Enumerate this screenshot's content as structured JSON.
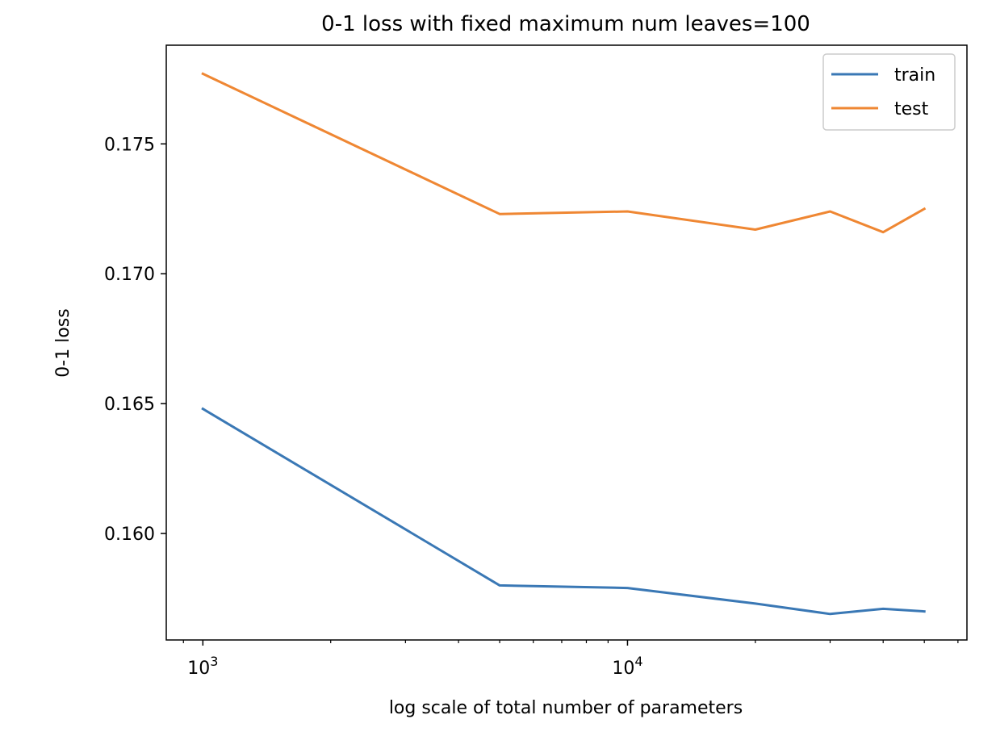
{
  "chart_data": {
    "type": "line",
    "title": "0-1 loss with fixed maximum num leaves=100",
    "xlabel": "log scale of total number of parameters",
    "ylabel": "0-1 loss",
    "xscale": "log",
    "xlim": [
      820,
      63000
    ],
    "ylim": [
      0.1559,
      0.1788
    ],
    "x_ticks": [
      {
        "value": 1000,
        "base": "10",
        "exp": "3"
      },
      {
        "value": 10000,
        "base": "10",
        "exp": "4"
      }
    ],
    "y_ticks": [
      {
        "value": 0.16,
        "label": "0.160"
      },
      {
        "value": 0.165,
        "label": "0.165"
      },
      {
        "value": 0.17,
        "label": "0.170"
      },
      {
        "value": 0.175,
        "label": "0.175"
      }
    ],
    "grid": false,
    "legend_position": "top-right",
    "series": [
      {
        "name": "train",
        "color": "#3a78b5",
        "x": [
          1000,
          5000,
          10000,
          20000,
          30000,
          40000,
          50000
        ],
        "y": [
          0.1648,
          0.158,
          0.1579,
          0.1573,
          0.1569,
          0.1571,
          0.157
        ]
      },
      {
        "name": "test",
        "color": "#ef8733",
        "x": [
          1000,
          5000,
          10000,
          20000,
          30000,
          40000,
          50000
        ],
        "y": [
          0.1777,
          0.1723,
          0.1724,
          0.1717,
          0.1724,
          0.1716,
          0.1725
        ]
      }
    ]
  }
}
